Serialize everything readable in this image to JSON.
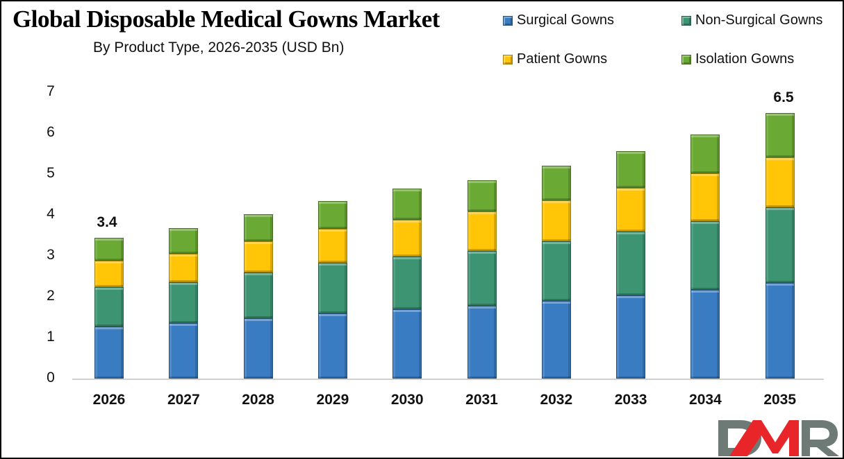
{
  "header": {
    "title": "Global Disposable Medical Gowns Market",
    "subtitle": "By Product Type, 2026-2035 (USD Bn)"
  },
  "legend": [
    {
      "label": "Surgical Gowns",
      "color": "#3a7cc2"
    },
    {
      "label": "Non-Surgical Gowns",
      "color": "#3d9472"
    },
    {
      "label": "Patient Gowns",
      "color": "#ffc506"
    },
    {
      "label": "Isolation Gowns",
      "color": "#6aaa34"
    }
  ],
  "y_ticks": [
    "0",
    "1",
    "2",
    "3",
    "4",
    "5",
    "6",
    "7"
  ],
  "data_labels": {
    "first": "3.4",
    "last": "6.5"
  },
  "logo": {
    "text": "DMR",
    "colors": {
      "gray": "#6e7a76",
      "red": "#e8262a"
    }
  },
  "chart_data": {
    "type": "bar",
    "stacked": true,
    "title": "Global Disposable Medical Gowns Market",
    "subtitle": "By Product Type, 2026-2035 (USD Bn)",
    "xlabel": "",
    "ylabel": "",
    "ylim": [
      0,
      7
    ],
    "yticks": [
      0,
      1,
      2,
      3,
      4,
      5,
      6,
      7
    ],
    "grid": false,
    "legend_position": "top-right",
    "categories": [
      "2026",
      "2027",
      "2028",
      "2029",
      "2030",
      "2031",
      "2032",
      "2033",
      "2034",
      "2035"
    ],
    "series": [
      {
        "name": "Surgical Gowns",
        "color": "#3a7cc2",
        "values": [
          1.27,
          1.36,
          1.47,
          1.59,
          1.69,
          1.78,
          1.9,
          2.03,
          2.17,
          2.34
        ]
      },
      {
        "name": "Non-Surgical Gowns",
        "color": "#3d9472",
        "values": [
          0.97,
          1.0,
          1.12,
          1.24,
          1.29,
          1.34,
          1.46,
          1.56,
          1.68,
          1.85
        ]
      },
      {
        "name": "Patient Gowns",
        "color": "#ffc506",
        "values": [
          0.65,
          0.69,
          0.76,
          0.83,
          0.9,
          0.97,
          1.0,
          1.07,
          1.17,
          1.22
        ]
      },
      {
        "name": "Isolation Gowns",
        "color": "#6aaa34",
        "values": [
          0.55,
          0.63,
          0.66,
          0.68,
          0.76,
          0.75,
          0.85,
          0.9,
          0.95,
          1.09
        ]
      }
    ],
    "totals": [
      3.4,
      3.7,
      4.0,
      4.3,
      4.6,
      4.8,
      5.2,
      5.6,
      6.0,
      6.5
    ],
    "annotations": [
      {
        "category": "2026",
        "text": "3.4"
      },
      {
        "category": "2035",
        "text": "6.5"
      }
    ]
  }
}
